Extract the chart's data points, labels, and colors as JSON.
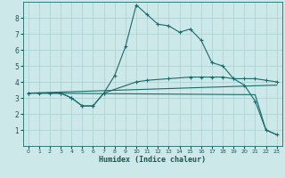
{
  "xlabel": "Humidex (Indice chaleur)",
  "bg_color": "#cce8e8",
  "line_color": "#1a6b6b",
  "grid_color": "#aacfcf",
  "xlim": [
    -0.5,
    23.5
  ],
  "ylim": [
    0,
    9
  ],
  "xticks": [
    0,
    1,
    2,
    3,
    4,
    5,
    6,
    7,
    8,
    9,
    10,
    11,
    12,
    13,
    14,
    15,
    16,
    17,
    18,
    19,
    20,
    21,
    22,
    23
  ],
  "yticks": [
    1,
    2,
    3,
    4,
    5,
    6,
    7,
    8
  ],
  "line1_x": [
    0,
    1,
    2,
    3,
    4,
    5,
    6,
    7,
    8,
    9,
    10,
    11,
    12,
    13,
    14,
    15,
    16,
    17,
    18,
    19,
    20,
    21,
    22,
    23
  ],
  "line1_y": [
    3.3,
    3.3,
    3.3,
    3.3,
    3.0,
    2.5,
    2.5,
    3.3,
    4.4,
    6.2,
    8.8,
    8.2,
    7.6,
    7.5,
    7.1,
    7.3,
    6.6,
    5.2,
    5.0,
    4.2,
    3.8,
    2.8,
    1.0,
    0.7
  ],
  "line2_x": [
    0,
    3,
    4,
    5,
    6,
    7,
    10,
    11,
    13,
    15,
    16,
    17,
    18,
    19,
    20,
    21,
    22,
    23
  ],
  "line2_y": [
    3.3,
    3.3,
    3.0,
    2.5,
    2.5,
    3.3,
    4.0,
    4.1,
    4.2,
    4.3,
    4.3,
    4.3,
    4.3,
    4.2,
    4.2,
    4.2,
    4.1,
    4.0
  ],
  "line3_x": [
    0,
    23
  ],
  "line3_y": [
    3.3,
    3.8
  ],
  "line4_x": [
    0,
    21,
    22,
    23
  ],
  "line4_y": [
    3.3,
    3.2,
    1.0,
    0.7
  ]
}
